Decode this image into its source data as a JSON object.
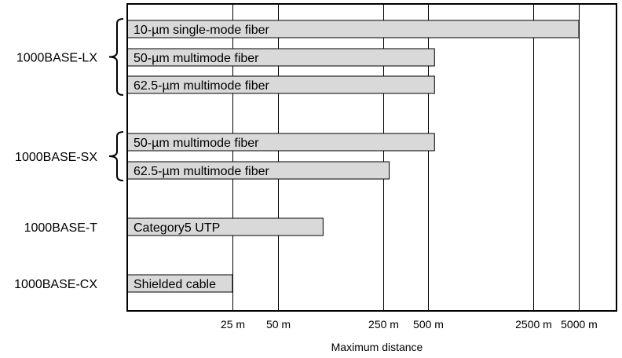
{
  "chart_data": {
    "type": "bar",
    "orientation": "horizontal",
    "xlabel": "Maximum distance",
    "x_scale": "log",
    "x_ticks": [
      {
        "label": "25 m",
        "value": 25
      },
      {
        "label": "50 m",
        "value": 50
      },
      {
        "label": "250 m",
        "value": 250
      },
      {
        "label": "500 m",
        "value": 500
      },
      {
        "label": "2500 m",
        "value": 2500
      },
      {
        "label": "5000 m",
        "value": 5000
      }
    ],
    "grid": true,
    "groups": [
      {
        "name": "1000BASE-LX",
        "brace": true,
        "bars": [
          {
            "label": "10-µm single-mode fiber",
            "value": 5000
          },
          {
            "label": "50-µm multimode fiber",
            "value": 550
          },
          {
            "label": "62.5-µm multimode fiber",
            "value": 550
          }
        ]
      },
      {
        "name": "1000BASE-SX",
        "brace": true,
        "bars": [
          {
            "label": "50-µm multimode fiber",
            "value": 550
          },
          {
            "label": "62.5-µm multimode fiber",
            "value": 275
          }
        ]
      },
      {
        "name": "1000BASE-T",
        "brace": false,
        "bars": [
          {
            "label": "Category5 UTP",
            "value": 100
          }
        ]
      },
      {
        "name": "1000BASE-CX",
        "brace": false,
        "bars": [
          {
            "label": "Shielded cable",
            "value": 25
          }
        ]
      }
    ]
  }
}
